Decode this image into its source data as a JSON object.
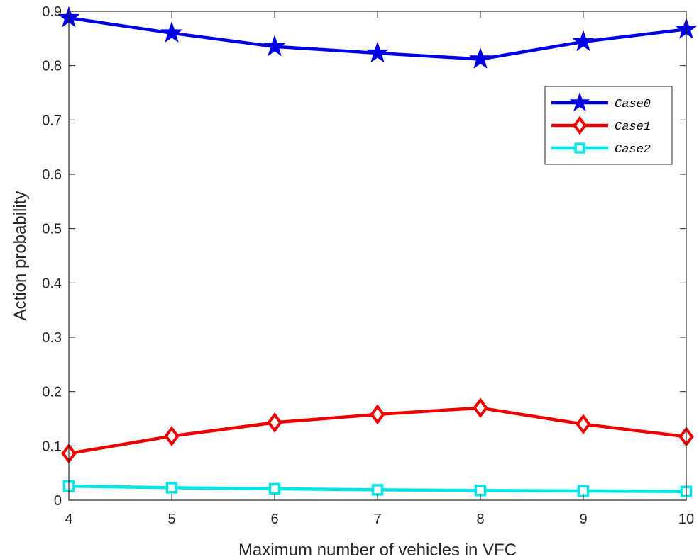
{
  "chart_data": {
    "type": "line",
    "xlabel": "Maximum number of vehicles in VFC",
    "ylabel": "Action probability",
    "x": [
      4,
      5,
      6,
      7,
      8,
      9,
      10
    ],
    "xticks": [
      "4",
      "5",
      "6",
      "7",
      "8",
      "9",
      "10"
    ],
    "yticks": [
      "0",
      "0.1",
      "0.2",
      "0.3",
      "0.4",
      "0.5",
      "0.6",
      "0.7",
      "0.8",
      "0.9"
    ],
    "xlim": [
      4,
      10
    ],
    "ylim": [
      0,
      0.9
    ],
    "grid": false,
    "legend_position": "top-right",
    "series": [
      {
        "name": "Case0",
        "color": "#0000e6",
        "marker": "star",
        "values": [
          0.888,
          0.86,
          0.835,
          0.823,
          0.812,
          0.844,
          0.867
        ]
      },
      {
        "name": "Case1",
        "color": "#ee0000",
        "marker": "diamond",
        "values": [
          0.086,
          0.118,
          0.143,
          0.158,
          0.17,
          0.14,
          0.117
        ]
      },
      {
        "name": "Case2",
        "color": "#00e5e5",
        "marker": "square",
        "values": [
          0.026,
          0.023,
          0.021,
          0.019,
          0.018,
          0.017,
          0.016
        ]
      }
    ]
  }
}
